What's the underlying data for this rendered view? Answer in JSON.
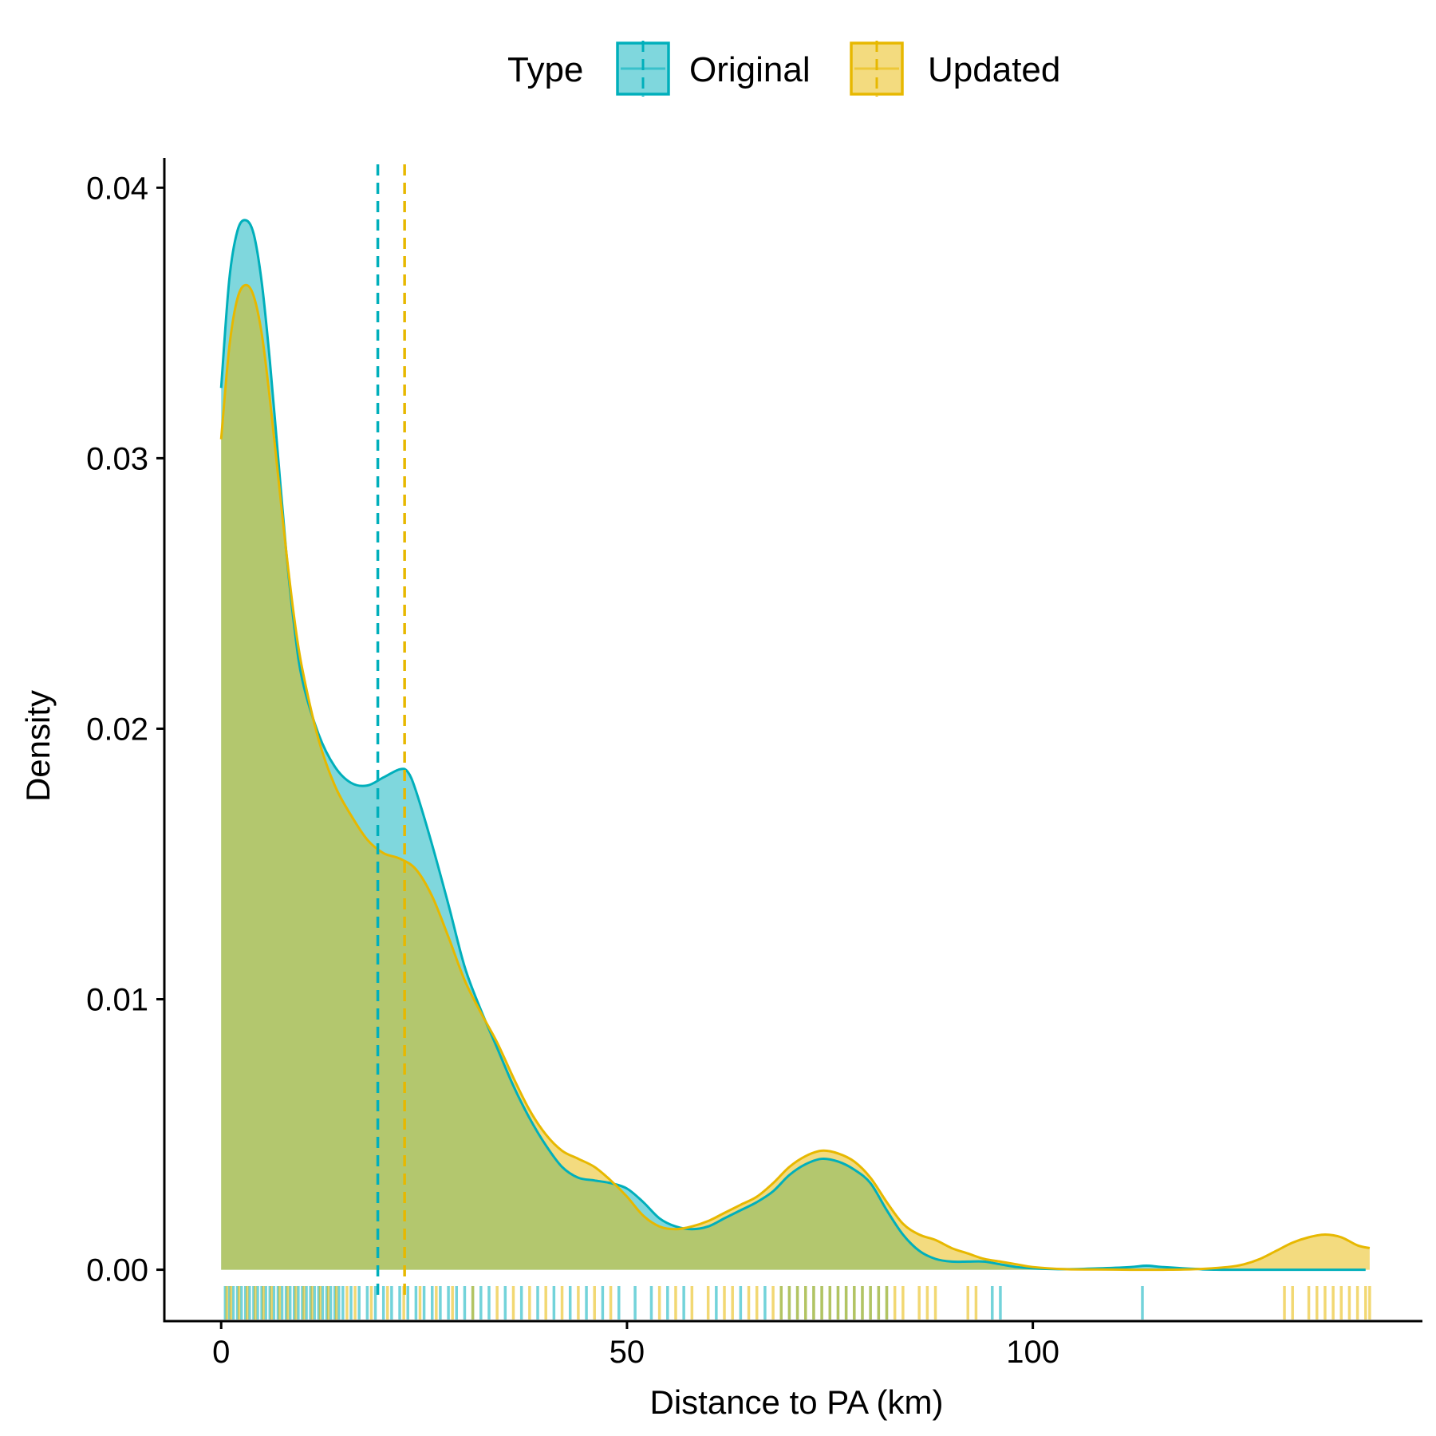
{
  "chart_data": {
    "type": "area",
    "title": "",
    "xlabel": "Distance to PA (km)",
    "ylabel": "Density",
    "xlim": [
      -7,
      148
    ],
    "ylim": [
      -0.0019,
      0.0411
    ],
    "grid": false,
    "legend": {
      "title": "Type",
      "placement": "top",
      "entries": [
        "Original",
        "Updated"
      ]
    },
    "x_ticks": [
      {
        "value": 0,
        "label": "0"
      },
      {
        "value": 50,
        "label": "50"
      },
      {
        "value": 100,
        "label": "100"
      }
    ],
    "y_ticks": [
      {
        "value": 0.0,
        "label": "0.00"
      },
      {
        "value": 0.01,
        "label": "0.01"
      },
      {
        "value": 0.02,
        "label": "0.02"
      },
      {
        "value": 0.03,
        "label": "0.03"
      },
      {
        "value": 0.04,
        "label": "0.04"
      }
    ],
    "series": [
      {
        "name": "Original",
        "color": "#00AFBB",
        "mean": 19.3,
        "points": [
          [
            0,
            0.0326
          ],
          [
            1,
            0.0366
          ],
          [
            2,
            0.0384
          ],
          [
            3,
            0.0388
          ],
          [
            4,
            0.0383
          ],
          [
            5,
            0.0365
          ],
          [
            6,
            0.0336
          ],
          [
            7,
            0.0301
          ],
          [
            8,
            0.0266
          ],
          [
            9,
            0.0238
          ],
          [
            10,
            0.0218
          ],
          [
            12,
            0.0198
          ],
          [
            14,
            0.0186
          ],
          [
            16,
            0.018
          ],
          [
            18,
            0.0179
          ],
          [
            20,
            0.0182
          ],
          [
            22,
            0.0185
          ],
          [
            23,
            0.0184
          ],
          [
            24,
            0.0177
          ],
          [
            26,
            0.0157
          ],
          [
            28,
            0.0135
          ],
          [
            30,
            0.0112
          ],
          [
            32,
            0.0096
          ],
          [
            34,
            0.0082
          ],
          [
            36,
            0.0068
          ],
          [
            38,
            0.0056
          ],
          [
            40,
            0.0046
          ],
          [
            42,
            0.0038
          ],
          [
            44,
            0.0034
          ],
          [
            46,
            0.0033
          ],
          [
            48,
            0.0032
          ],
          [
            50,
            0.003
          ],
          [
            52,
            0.0025
          ],
          [
            54,
            0.0019
          ],
          [
            56,
            0.0016
          ],
          [
            58,
            0.0015
          ],
          [
            60,
            0.0016
          ],
          [
            62,
            0.0019
          ],
          [
            64,
            0.0022
          ],
          [
            66,
            0.0025
          ],
          [
            68,
            0.0029
          ],
          [
            70,
            0.0035
          ],
          [
            72,
            0.0039
          ],
          [
            74,
            0.0041
          ],
          [
            76,
            0.004
          ],
          [
            78,
            0.0037
          ],
          [
            80,
            0.0032
          ],
          [
            82,
            0.0022
          ],
          [
            84,
            0.0013
          ],
          [
            86,
            0.0007
          ],
          [
            88,
            0.0004
          ],
          [
            90,
            0.0003
          ],
          [
            92,
            0.0003
          ],
          [
            94,
            0.0003
          ],
          [
            96,
            0.0002
          ],
          [
            98,
            0.0001
          ],
          [
            100,
            5e-05
          ],
          [
            104,
            2e-05
          ],
          [
            108,
            5e-05
          ],
          [
            112,
            0.0001
          ],
          [
            114,
            0.00015
          ],
          [
            116,
            0.0001
          ],
          [
            120,
            3e-05
          ],
          [
            124,
            0.0
          ],
          [
            141,
            0.0
          ]
        ],
        "rug": [
          0.5,
          1,
          1.5,
          2,
          2.5,
          3,
          3.5,
          4,
          4.5,
          5,
          5.5,
          6,
          6.5,
          7,
          7.5,
          8,
          8.5,
          9,
          9.5,
          10,
          10.5,
          11,
          11.5,
          12,
          12.5,
          13,
          13.5,
          14,
          14.5,
          15,
          16,
          17,
          18,
          19,
          20,
          21,
          22,
          23,
          24,
          25,
          26,
          27,
          28,
          29,
          30,
          31,
          32,
          33,
          35,
          37,
          39,
          41,
          43,
          45,
          47,
          49,
          51,
          53,
          55,
          57,
          61,
          64,
          67,
          69,
          70,
          71,
          72,
          73,
          74,
          75,
          76,
          77,
          78,
          79,
          80,
          81,
          82,
          95,
          96,
          113.5
        ]
      },
      {
        "name": "Updated",
        "color": "#E7B800",
        "mean": 22.6,
        "points": [
          [
            0,
            0.0307
          ],
          [
            1,
            0.0341
          ],
          [
            2,
            0.0359
          ],
          [
            3,
            0.0364
          ],
          [
            4,
            0.036
          ],
          [
            5,
            0.0346
          ],
          [
            6,
            0.0322
          ],
          [
            7,
            0.0294
          ],
          [
            8,
            0.0266
          ],
          [
            9,
            0.0241
          ],
          [
            10,
            0.0222
          ],
          [
            12,
            0.0196
          ],
          [
            14,
            0.0179
          ],
          [
            16,
            0.0168
          ],
          [
            18,
            0.0159
          ],
          [
            20,
            0.0154
          ],
          [
            22,
            0.0152
          ],
          [
            24,
            0.0148
          ],
          [
            26,
            0.0138
          ],
          [
            28,
            0.0123
          ],
          [
            30,
            0.0107
          ],
          [
            32,
            0.0095
          ],
          [
            34,
            0.0084
          ],
          [
            36,
            0.0071
          ],
          [
            38,
            0.0059
          ],
          [
            40,
            0.005
          ],
          [
            42,
            0.0044
          ],
          [
            44,
            0.0041
          ],
          [
            46,
            0.0038
          ],
          [
            48,
            0.0033
          ],
          [
            50,
            0.0027
          ],
          [
            52,
            0.002
          ],
          [
            54,
            0.0016
          ],
          [
            56,
            0.0015
          ],
          [
            58,
            0.0016
          ],
          [
            60,
            0.0018
          ],
          [
            62,
            0.0021
          ],
          [
            64,
            0.0024
          ],
          [
            66,
            0.0027
          ],
          [
            68,
            0.0032
          ],
          [
            70,
            0.0038
          ],
          [
            72,
            0.0042
          ],
          [
            74,
            0.0044
          ],
          [
            76,
            0.0043
          ],
          [
            78,
            0.004
          ],
          [
            80,
            0.0034
          ],
          [
            82,
            0.0025
          ],
          [
            84,
            0.0017
          ],
          [
            86,
            0.0013
          ],
          [
            88,
            0.0011
          ],
          [
            90,
            0.0008
          ],
          [
            92,
            0.0006
          ],
          [
            94,
            0.0004
          ],
          [
            96,
            0.0003
          ],
          [
            98,
            0.0002
          ],
          [
            100,
            0.0001
          ],
          [
            104,
            2e-05
          ],
          [
            108,
            1e-05
          ],
          [
            112,
            0.0
          ],
          [
            116,
            0.0
          ],
          [
            120,
            2e-05
          ],
          [
            124,
            0.0001
          ],
          [
            126,
            0.0002
          ],
          [
            128,
            0.0004
          ],
          [
            130,
            0.0007
          ],
          [
            132,
            0.001
          ],
          [
            134,
            0.0012
          ],
          [
            136,
            0.0013
          ],
          [
            138,
            0.0012
          ],
          [
            140,
            0.0009
          ],
          [
            141.5,
            0.0008
          ]
        ],
        "rug": [
          0.7,
          1.2,
          2.2,
          3.2,
          4.2,
          5.2,
          6.2,
          7.2,
          8.2,
          9.2,
          10.2,
          11.2,
          12.2,
          13.2,
          14.2,
          15.5,
          16.5,
          18.5,
          20.5,
          22.5,
          24.5,
          26.5,
          28.5,
          31,
          34,
          36,
          38,
          40,
          42,
          44,
          46,
          48,
          54,
          56,
          58,
          60,
          62,
          63,
          65,
          66,
          68,
          69,
          70,
          71,
          72,
          73,
          74,
          75,
          76,
          77,
          78,
          79,
          80,
          81,
          82,
          83,
          84,
          86,
          87,
          88,
          92,
          93,
          131,
          132,
          134,
          135,
          136,
          137,
          138,
          139,
          140,
          141,
          141.5
        ]
      }
    ]
  }
}
